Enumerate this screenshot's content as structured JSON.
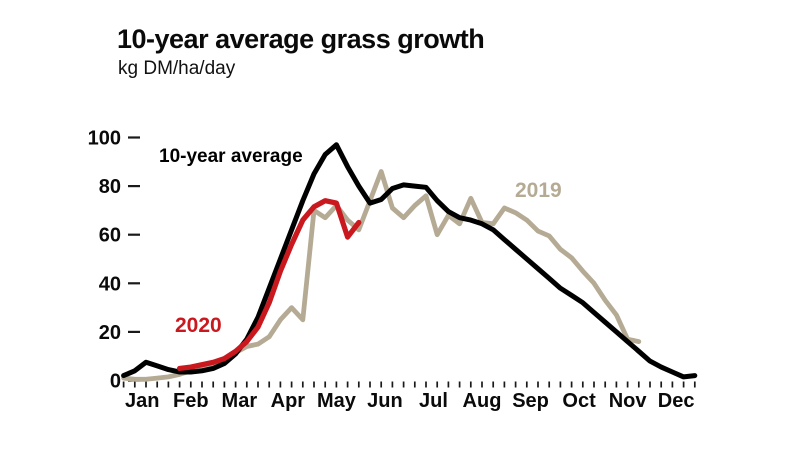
{
  "title": "10-year average grass growth",
  "subtitle": "kg DM/ha/day",
  "colors": {
    "average": "#000000",
    "y2019": "#b5ab94",
    "y2020": "#c9181e",
    "axis": "#1a1a1a",
    "text": "#0a0a0a",
    "background": "#ffffff"
  },
  "series_labels": {
    "average": "10-year average",
    "y2020": "2020",
    "y2019": "2019"
  },
  "chart_data": {
    "type": "line",
    "title": "10-year average grass growth",
    "ylabel": "kg DM/ha/day",
    "x_unit": "week of year",
    "weeks": 52,
    "months": [
      "Jan",
      "Feb",
      "Mar",
      "Apr",
      "May",
      "Jun",
      "Jul",
      "Aug",
      "Sep",
      "Oct",
      "Nov",
      "Dec"
    ],
    "y_ticks": [
      0,
      20,
      40,
      60,
      80,
      100
    ],
    "ylim": [
      0,
      100
    ],
    "grid": false,
    "legend_position": "inline-labels",
    "series": [
      {
        "id": "2019",
        "name": "2019",
        "color": "#b5ab94",
        "width": 4.8,
        "start_week": 1,
        "values": [
          1,
          0.5,
          0.5,
          1,
          1.5,
          2.5,
          4,
          5.5,
          7,
          9,
          11.5,
          14,
          15,
          18,
          25,
          30,
          25,
          70,
          67,
          72,
          66,
          62,
          74,
          86,
          71,
          67,
          72,
          76,
          60,
          68,
          64.5,
          75,
          65,
          64.5,
          71,
          69,
          66,
          61.5,
          59.5,
          54,
          50.5,
          45,
          40,
          33,
          27,
          17,
          16
        ]
      },
      {
        "id": "average",
        "name": "10-year average",
        "color": "#000000",
        "width": 5,
        "start_week": 1,
        "values": [
          2,
          4,
          7.5,
          6,
          4.5,
          3.5,
          3.5,
          4,
          5,
          7,
          11,
          17,
          26,
          38,
          50,
          62,
          74,
          85,
          93,
          97,
          88,
          80,
          73,
          74.5,
          79,
          80.5,
          80,
          79.5,
          74,
          69.5,
          67,
          66,
          64.5,
          62,
          58,
          54,
          50,
          46,
          42,
          38,
          35,
          32,
          28,
          24,
          20,
          16,
          12,
          8,
          5.5,
          3.5,
          1.5,
          2
        ]
      },
      {
        "id": "2020",
        "name": "2020",
        "color": "#c9181e",
        "width": 5.2,
        "start_week": 6,
        "values": [
          5,
          5.5,
          6.5,
          7.5,
          9,
          12,
          16,
          22,
          32,
          45,
          56,
          66,
          71.5,
          74,
          73,
          59,
          65
        ]
      }
    ]
  }
}
